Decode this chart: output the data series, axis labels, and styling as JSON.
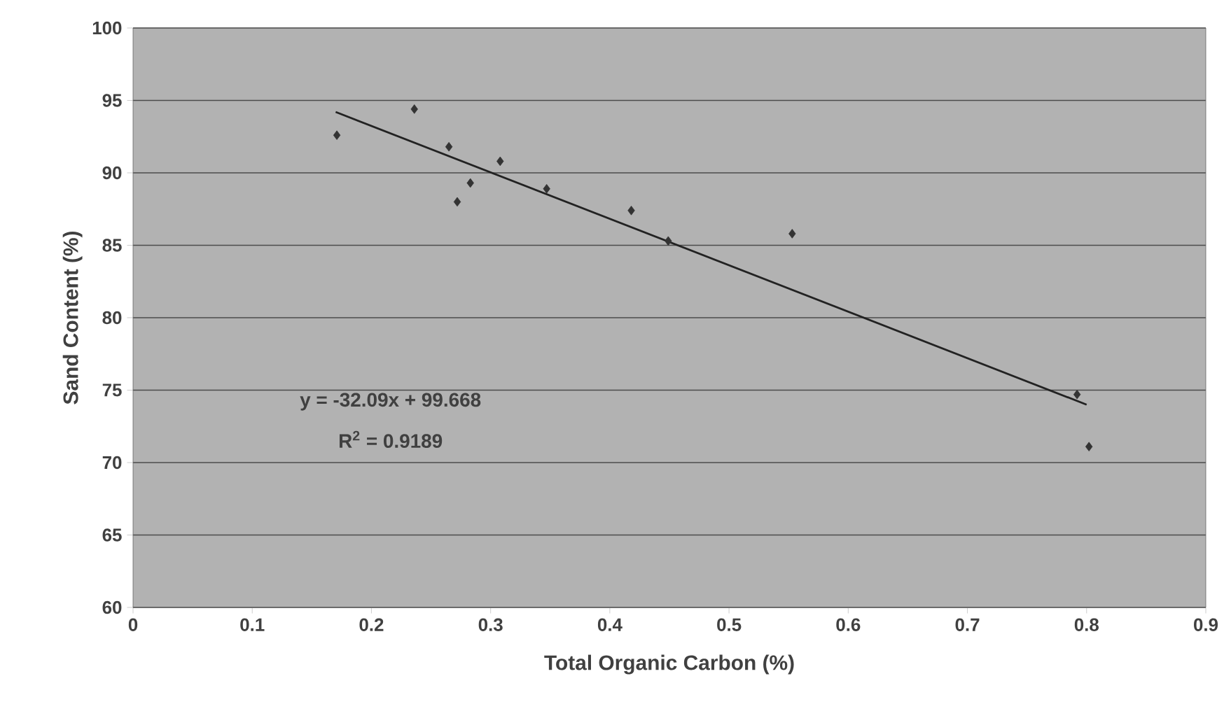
{
  "chart_data": {
    "type": "scatter",
    "xlabel": "Total Organic Carbon (%)",
    "ylabel": "Sand Content (%)",
    "xlim": [
      0,
      0.9
    ],
    "xticks": [
      0,
      0.1,
      0.2,
      0.3,
      0.4,
      0.5,
      0.6,
      0.7,
      0.8,
      0.9
    ],
    "ylim": [
      60,
      100
    ],
    "yticks": [
      60,
      65,
      70,
      75,
      80,
      85,
      90,
      95,
      100
    ],
    "grid": "y",
    "marker": "diamond",
    "series": [
      {
        "color": "#333333",
        "x": [
          0.171,
          0.236,
          0.265,
          0.272,
          0.283,
          0.308,
          0.347,
          0.418,
          0.449,
          0.553,
          0.792,
          0.802
        ],
        "values": [
          92.6,
          94.4,
          91.8,
          88.0,
          89.3,
          90.8,
          88.9,
          87.4,
          85.3,
          85.8,
          74.7,
          71.1
        ]
      },
      {
        "type": "line",
        "color": "#222222",
        "x": [
          0.17,
          0.8
        ],
        "values": [
          94.2,
          74.0
        ],
        "marker": "none",
        "line_style": "solid"
      }
    ],
    "annotations": [
      "y = -32.09x + 99.668",
      "R$^{2}$ = 0.9189"
    ]
  }
}
